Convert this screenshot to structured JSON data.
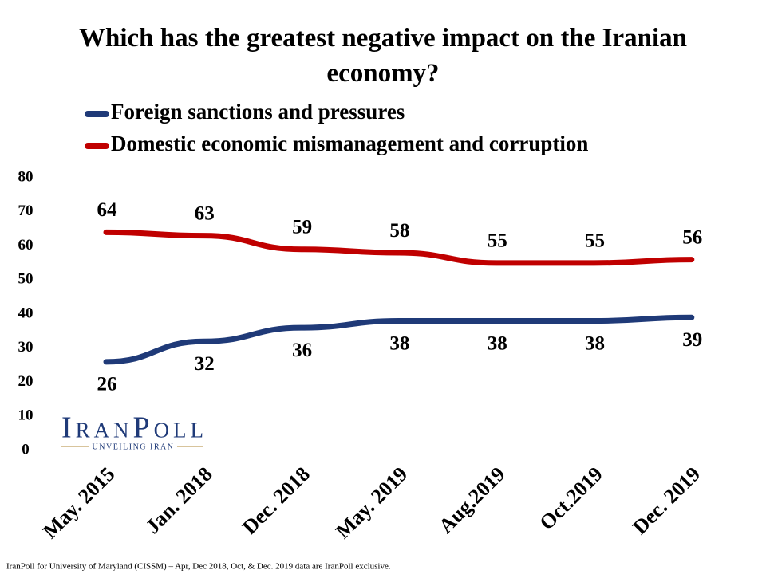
{
  "chart_data": {
    "type": "line",
    "title": "Which has the greatest negative impact on the Iranian economy?",
    "categories": [
      "May. 2015",
      "Jan. 2018",
      "Dec. 2018",
      "May. 2019",
      "Aug.2019",
      "Oct.2019",
      "Dec. 2019"
    ],
    "series": [
      {
        "name": "Foreign sanctions and pressures",
        "color": "#1f3a78",
        "values": [
          26,
          32,
          36,
          38,
          38,
          38,
          39
        ]
      },
      {
        "name": "Domestic economic mismanagement and corruption",
        "color": "#c00000",
        "values": [
          64,
          63,
          59,
          58,
          55,
          55,
          56
        ]
      }
    ],
    "ylim": [
      0,
      80
    ],
    "yticks": [
      0,
      10,
      20,
      30,
      40,
      50,
      60,
      70,
      80
    ],
    "grid": false,
    "legend": "top-left"
  },
  "logo": {
    "name": "IranPoll",
    "tagline": "UNVEILING IRAN"
  },
  "footnote": "IranPoll for University of Maryland (CISSM) – Apr, Dec 2018, Oct, & Dec. 2019 data are IranPoll exclusive."
}
